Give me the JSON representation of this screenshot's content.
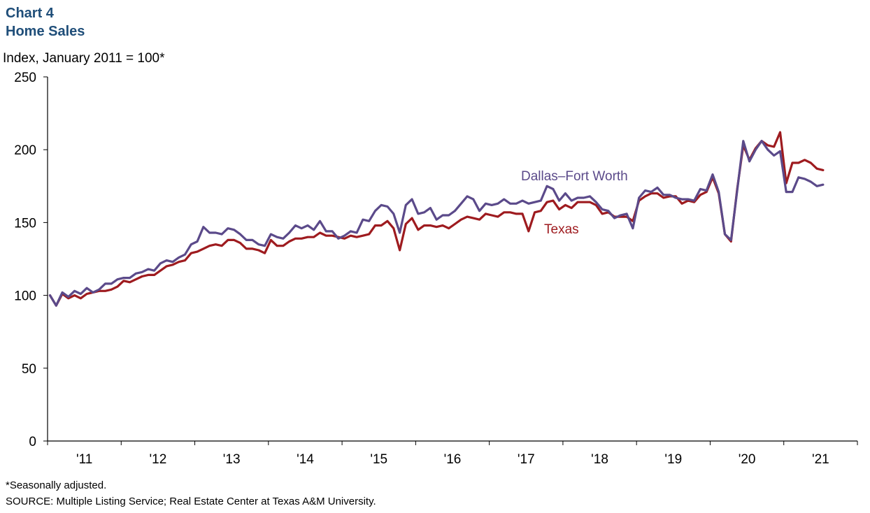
{
  "header": {
    "chart_number": "Chart 4",
    "title": "Home Sales"
  },
  "footer": {
    "footnote": "*Seasonally adjusted.",
    "source": "SOURCE:  Multiple Listing Service; Real Estate Center at Texas A&M University."
  },
  "chart_data": {
    "type": "line",
    "title": "Home Sales",
    "ylabel": "Index, January 2011 = 100*",
    "xlabel": "",
    "ylim": [
      0,
      250
    ],
    "yticks": [
      0,
      50,
      100,
      150,
      200,
      250
    ],
    "xlim": [
      "2011-01",
      "2021-03"
    ],
    "year_labels": [
      "'11",
      "'12",
      "'13",
      "'14",
      "'15",
      "'16",
      "'17",
      "'18",
      "'19",
      "'20",
      "'21"
    ],
    "grid": false,
    "legend": "inline labels",
    "x_start": "2011-01",
    "x_frequency": "monthly",
    "series": [
      {
        "name": "Dallas–Fort Worth",
        "color": "#5b4a8a",
        "values": [
          100,
          93,
          102,
          99,
          103,
          101,
          105,
          102,
          104,
          108,
          108,
          111,
          112,
          112,
          115,
          116,
          118,
          117,
          122,
          124,
          123,
          126,
          128,
          135,
          137,
          147,
          143,
          143,
          142,
          146,
          145,
          142,
          138,
          138,
          135,
          134,
          142,
          140,
          139,
          143,
          148,
          146,
          148,
          145,
          151,
          144,
          144,
          139,
          141,
          144,
          143,
          152,
          151,
          158,
          162,
          161,
          156,
          143,
          162,
          166,
          156,
          157,
          160,
          152,
          155,
          155,
          158,
          163,
          168,
          166,
          158,
          163,
          162,
          163,
          166,
          163,
          163,
          165,
          163,
          164,
          165,
          175,
          173,
          165,
          170,
          165,
          167,
          167,
          168,
          164,
          159,
          158,
          153,
          155,
          156,
          146,
          167,
          172,
          171,
          174,
          169,
          169,
          167,
          166,
          166,
          165,
          173,
          172,
          183,
          171,
          142,
          138,
          172,
          206,
          192,
          200,
          206,
          200,
          196,
          199,
          171,
          171,
          181,
          180,
          178,
          175,
          176
        ]
      },
      {
        "name": "Texas",
        "color": "#9e1b1f",
        "values": [
          100,
          93,
          101,
          98,
          100,
          98,
          101,
          102,
          103,
          103,
          104,
          106,
          110,
          109,
          111,
          113,
          114,
          114,
          117,
          120,
          121,
          123,
          124,
          129,
          130,
          132,
          134,
          135,
          134,
          138,
          138,
          136,
          132,
          132,
          131,
          129,
          138,
          134,
          134,
          137,
          139,
          139,
          140,
          140,
          143,
          141,
          141,
          140,
          139,
          141,
          140,
          141,
          142,
          148,
          148,
          151,
          146,
          131,
          149,
          153,
          145,
          148,
          148,
          147,
          148,
          146,
          149,
          152,
          154,
          153,
          152,
          156,
          155,
          154,
          157,
          157,
          156,
          156,
          144,
          157,
          158,
          164,
          165,
          159,
          162,
          160,
          164,
          164,
          164,
          162,
          156,
          157,
          154,
          154,
          154,
          151,
          165,
          168,
          170,
          170,
          167,
          168,
          168,
          163,
          165,
          164,
          169,
          171,
          181,
          170,
          142,
          137,
          173,
          203,
          193,
          201,
          206,
          203,
          202,
          212,
          177,
          191,
          191,
          193,
          191,
          187,
          186
        ]
      }
    ]
  }
}
